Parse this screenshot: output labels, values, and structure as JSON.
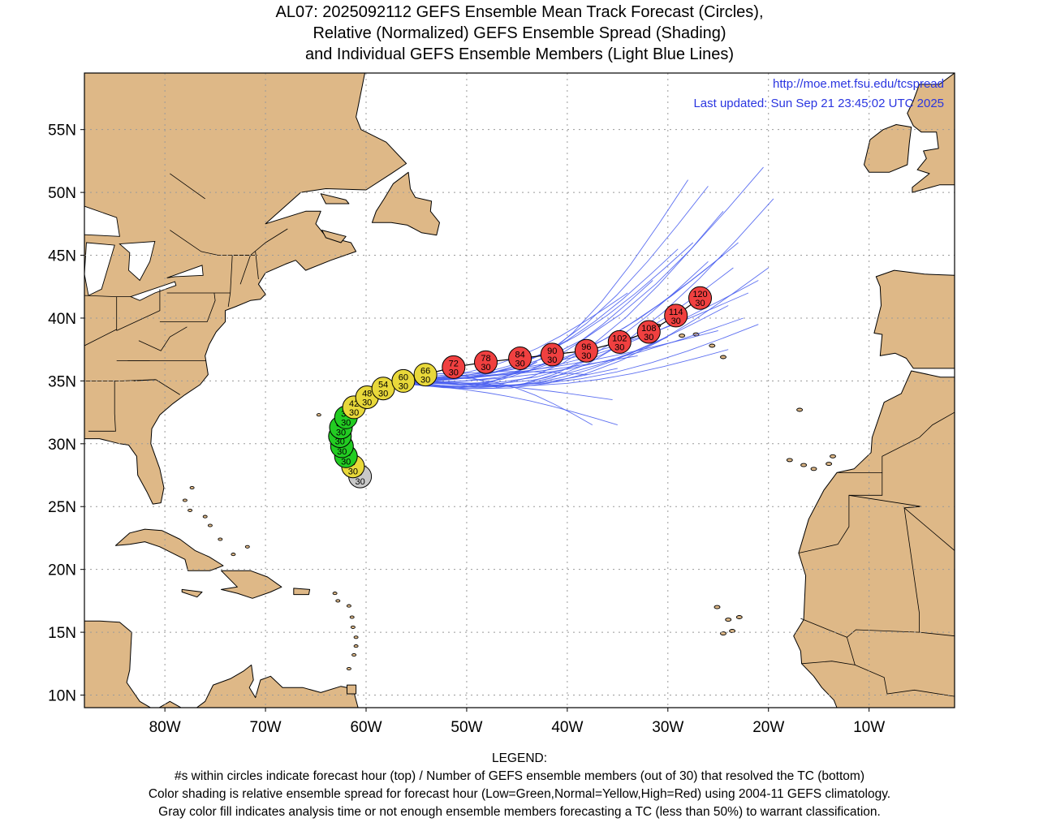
{
  "title": {
    "line1": "AL07: 2025092112 GEFS Ensemble Mean Track Forecast (Circles),",
    "line2": "Relative (Normalized) GEFS Ensemble Spread (Shading)",
    "line3": "and Individual GEFS Ensemble Members (Light Blue Lines)"
  },
  "header_info": {
    "url": "http://moe.met.fsu.edu/tcspread",
    "updated": "Last updated: Sun Sep 21 23:45:02 UTC 2025"
  },
  "legend": {
    "heading": "LEGEND:",
    "line1": "#s within circles indicate forecast hour (top) / Number of GEFS ensemble members (out of 30) that resolved the TC (bottom)",
    "line2": "Color shading is relative ensemble spread for forecast hour (Low=Green,Normal=Yellow,High=Red) using 2004-11 GEFS climatology.",
    "line3": "Gray color fill indicates analysis time or not enough ensemble members forecasting a TC (less than 50%) to warrant classification."
  },
  "colors": {
    "land": "#deb887",
    "ocean": "#ffffff",
    "member_track": "#4a5ff0",
    "mean_track": "#000000",
    "low_spread": "#22cc22",
    "normal_spread": "#e8d83a",
    "high_spread": "#f04040",
    "gray": "#c8c8c8",
    "url_text": "#2a35e0"
  },
  "chart_data": {
    "type": "map",
    "projection": "cylindrical",
    "lon_range": [
      -88,
      -1.5
    ],
    "lat_range": [
      9,
      59.5
    ],
    "grid": true,
    "lon_ticks": [
      {
        "lon": -80,
        "label": "80W"
      },
      {
        "lon": -70,
        "label": "70W"
      },
      {
        "lon": -60,
        "label": "60W"
      },
      {
        "lon": -50,
        "label": "50W"
      },
      {
        "lon": -40,
        "label": "40W"
      },
      {
        "lon": -30,
        "label": "30W"
      },
      {
        "lon": -20,
        "label": "20W"
      },
      {
        "lon": -10,
        "label": "10W"
      }
    ],
    "lat_ticks": [
      {
        "lat": 10,
        "label": "10N"
      },
      {
        "lat": 15,
        "label": "15N"
      },
      {
        "lat": 20,
        "label": "20N"
      },
      {
        "lat": 25,
        "label": "25N"
      },
      {
        "lat": 30,
        "label": "30N"
      },
      {
        "lat": 35,
        "label": "35N"
      },
      {
        "lat": 40,
        "label": "40N"
      },
      {
        "lat": 45,
        "label": "45N"
      },
      {
        "lat": 50,
        "label": "50N"
      },
      {
        "lat": 55,
        "label": "55N"
      }
    ],
    "mean_track": [
      {
        "hour": "0",
        "members": "30",
        "lon": -60.6,
        "lat": 27.4,
        "spread": "gray"
      },
      {
        "hour": "6",
        "members": "30",
        "lon": -61.3,
        "lat": 28.2,
        "spread": "normal"
      },
      {
        "hour": "12",
        "members": "30",
        "lon": -62.0,
        "lat": 29.0,
        "spread": "low"
      },
      {
        "hour": "18",
        "members": "30",
        "lon": -62.4,
        "lat": 29.8,
        "spread": "low"
      },
      {
        "hour": "24",
        "members": "30",
        "lon": -62.6,
        "lat": 30.6,
        "spread": "low"
      },
      {
        "hour": "30",
        "members": "30",
        "lon": -62.5,
        "lat": 31.3,
        "spread": "low"
      },
      {
        "hour": "36",
        "members": "30",
        "lon": -62.0,
        "lat": 32.1,
        "spread": "low"
      },
      {
        "hour": "42",
        "members": "30",
        "lon": -61.2,
        "lat": 32.9,
        "spread": "normal"
      },
      {
        "hour": "48",
        "members": "30",
        "lon": -59.9,
        "lat": 33.7,
        "spread": "normal"
      },
      {
        "hour": "54",
        "members": "30",
        "lon": -58.3,
        "lat": 34.4,
        "spread": "normal"
      },
      {
        "hour": "60",
        "members": "30",
        "lon": -56.3,
        "lat": 35.0,
        "spread": "normal"
      },
      {
        "hour": "66",
        "members": "30",
        "lon": -54.1,
        "lat": 35.5,
        "spread": "normal"
      },
      {
        "hour": "72",
        "members": "30",
        "lon": -51.3,
        "lat": 36.1,
        "spread": "high"
      },
      {
        "hour": "78",
        "members": "30",
        "lon": -48.1,
        "lat": 36.5,
        "spread": "high"
      },
      {
        "hour": "84",
        "members": "30",
        "lon": -44.7,
        "lat": 36.8,
        "spread": "high"
      },
      {
        "hour": "90",
        "members": "30",
        "lon": -41.5,
        "lat": 37.1,
        "spread": "high"
      },
      {
        "hour": "96",
        "members": "30",
        "lon": -38.1,
        "lat": 37.4,
        "spread": "high"
      },
      {
        "hour": "102",
        "members": "30",
        "lon": -34.8,
        "lat": 38.1,
        "spread": "high"
      },
      {
        "hour": "108",
        "members": "30",
        "lon": -31.9,
        "lat": 38.9,
        "spread": "high"
      },
      {
        "hour": "114",
        "members": "30",
        "lon": -29.2,
        "lat": 40.2,
        "spread": "high"
      },
      {
        "hour": "120",
        "members": "30",
        "lon": -26.8,
        "lat": 41.6,
        "spread": "high"
      }
    ],
    "member_ends": [
      [
        -28.0,
        51.0
      ],
      [
        -26.0,
        50.5
      ],
      [
        -24.5,
        48.5
      ],
      [
        -20.5,
        52.0
      ],
      [
        -19.5,
        49.5
      ],
      [
        -24.5,
        45.0
      ],
      [
        -23.5,
        44.0
      ],
      [
        -21.0,
        43.0
      ],
      [
        -20.0,
        44.0
      ],
      [
        -22.0,
        42.0
      ],
      [
        -24.0,
        41.0
      ],
      [
        -22.5,
        40.0
      ],
      [
        -21.0,
        39.5
      ],
      [
        -25.0,
        39.0
      ],
      [
        -30.0,
        38.5
      ],
      [
        -33.0,
        37.0
      ],
      [
        -35.0,
        36.0
      ],
      [
        -38.0,
        35.5
      ],
      [
        -43.0,
        36.5
      ],
      [
        -47.0,
        34.5
      ],
      [
        -35.5,
        33.5
      ],
      [
        -37.5,
        31.5
      ],
      [
        -35.0,
        31.5
      ],
      [
        -27.5,
        46.0
      ],
      [
        -26.0,
        44.5
      ],
      [
        -23.0,
        46.0
      ],
      [
        -31.5,
        43.0
      ],
      [
        -29.0,
        45.5
      ],
      [
        -24.0,
        37.5
      ],
      [
        -34.0,
        42.0
      ]
    ]
  }
}
